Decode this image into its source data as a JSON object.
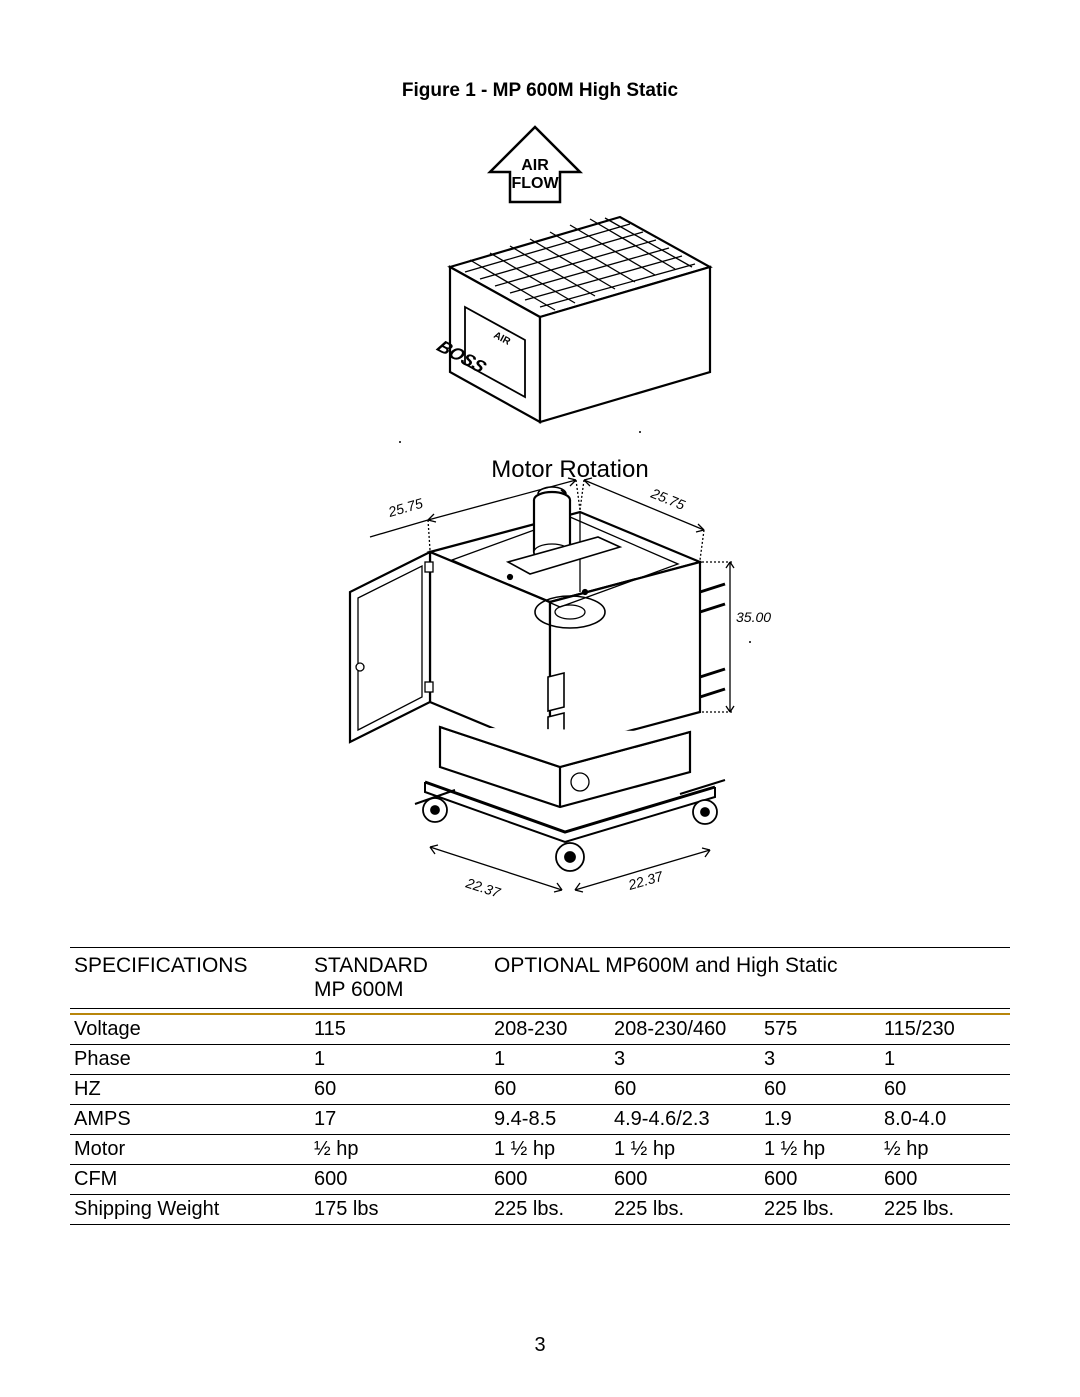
{
  "figure": {
    "title": "Figure 1 - MP 600M High Static",
    "labels": {
      "air": "AIR",
      "flow": "FLOW",
      "brand1": "AIR",
      "brand2": "BOSS",
      "motor_rotation": "Motor Rotation",
      "dim_top_left": "25.75",
      "dim_top_right": "25.75",
      "dim_height": "35.00",
      "dim_base_left": "22.37",
      "dim_base_right": "22.37"
    },
    "style": {
      "stroke": "#000000",
      "stroke_width": 2.2,
      "stroke_thin": 1.3,
      "label_fontsize": 14,
      "motor_fontsize": 24,
      "airflow_fontsize": 16,
      "brand_fontsize": 14,
      "background": "#ffffff"
    }
  },
  "table": {
    "header": {
      "col1": "SPECIFICATIONS",
      "col2_line1": "STANDARD",
      "col2_line2": "MP 600M",
      "col_group": "OPTIONAL MP600M and High Static"
    },
    "accent_color": "#b8860b",
    "rows": [
      {
        "label": "Voltage",
        "values": [
          "115",
          "208-230",
          "208-230/460",
          "575",
          "115/230"
        ]
      },
      {
        "label": "Phase",
        "values": [
          "1",
          "1",
          "3",
          "3",
          "1"
        ]
      },
      {
        "label": "HZ",
        "values": [
          "60",
          "60",
          "60",
          "60",
          "60"
        ]
      },
      {
        "label": "AMPS",
        "values": [
          "17",
          "9.4-8.5",
          "4.9-4.6/2.3",
          "1.9",
          "8.0-4.0"
        ]
      },
      {
        "label": "Motor",
        "values": [
          "½ hp",
          "1 ½ hp",
          "1 ½ hp",
          "1 ½ hp",
          "½ hp"
        ]
      },
      {
        "label": "CFM",
        "values": [
          "600",
          "600",
          "600",
          "600",
          "600"
        ]
      },
      {
        "label": "Shipping Weight",
        "values": [
          "175 lbs",
          "225 lbs.",
          "225 lbs.",
          "225 lbs.",
          "225 lbs."
        ]
      }
    ]
  },
  "page_number": "3"
}
